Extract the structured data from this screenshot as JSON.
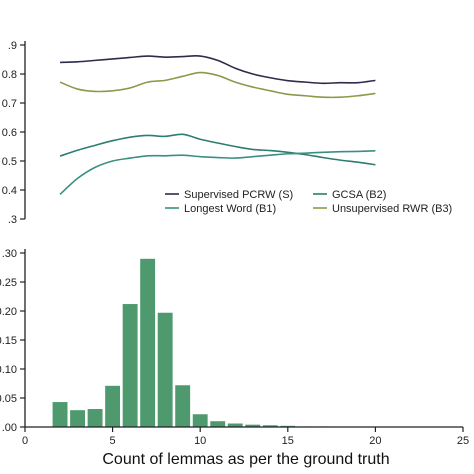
{
  "chart_data": [
    {
      "type": "line",
      "title": "",
      "xlabel": "",
      "ylabel": "",
      "xlim": [
        0,
        25
      ],
      "ylim": [
        0.3,
        0.9
      ],
      "yticks": [
        0.3,
        0.4,
        0.5,
        0.6,
        0.7,
        0.8,
        0.9
      ],
      "ytick_labels": [
        ".3",
        "0.4",
        "0.5",
        "0.6",
        "0.7",
        "0.8",
        ".9"
      ],
      "grid": false,
      "legend_position": "lower-right",
      "legend_columns": 2,
      "x": [
        2,
        3,
        4,
        5,
        6,
        7,
        8,
        9,
        10,
        11,
        12,
        13,
        14,
        15,
        16,
        17,
        18,
        19,
        20
      ],
      "series": [
        {
          "name": "Supervised PCRW (S)",
          "color": "#2b2d4a",
          "values": [
            0.84,
            0.842,
            0.847,
            0.852,
            0.857,
            0.862,
            0.858,
            0.86,
            0.862,
            0.847,
            0.82,
            0.8,
            0.787,
            0.777,
            0.772,
            0.768,
            0.77,
            0.77,
            0.778
          ]
        },
        {
          "name": "GCSA (B2)",
          "color": "#2e7d6e",
          "values": [
            0.517,
            0.537,
            0.554,
            0.57,
            0.582,
            0.588,
            0.585,
            0.592,
            0.575,
            0.562,
            0.55,
            0.54,
            0.536,
            0.53,
            0.522,
            0.512,
            0.503,
            0.496,
            0.487
          ]
        },
        {
          "name": "Longest Word (B1)",
          "color": "#3a8f82",
          "values": [
            0.385,
            0.44,
            0.478,
            0.5,
            0.51,
            0.518,
            0.518,
            0.52,
            0.515,
            0.512,
            0.51,
            0.515,
            0.52,
            0.525,
            0.527,
            0.53,
            0.532,
            0.533,
            0.535
          ]
        },
        {
          "name": "Unsupervised RWR (B3)",
          "color": "#8b9a4a",
          "values": [
            0.772,
            0.748,
            0.74,
            0.742,
            0.752,
            0.772,
            0.778,
            0.792,
            0.805,
            0.795,
            0.772,
            0.755,
            0.742,
            0.73,
            0.725,
            0.72,
            0.72,
            0.725,
            0.733
          ]
        }
      ]
    },
    {
      "type": "bar",
      "title": "",
      "xlabel": "Count of lemmas as per the ground truth",
      "ylabel": "",
      "xlim": [
        0,
        25
      ],
      "ylim": [
        0,
        0.3
      ],
      "xticks": [
        0,
        5,
        10,
        15,
        20,
        25
      ],
      "xtick_labels": [
        "0",
        "5",
        "10",
        "15",
        "20",
        "25"
      ],
      "yticks": [
        0,
        0.05,
        0.1,
        0.15,
        0.2,
        0.25,
        0.3
      ],
      "ytick_labels": [
        ".00",
        "0.05",
        "0.10",
        "0.15",
        "0.20",
        "0.25",
        ".30"
      ],
      "grid": false,
      "bar_color": "#4e9a6e",
      "bar_width": 0.85,
      "categories": [
        2,
        3,
        4,
        5,
        6,
        7,
        8,
        9,
        10,
        11,
        12,
        13,
        14,
        15,
        16,
        17,
        18,
        19,
        20
      ],
      "values": [
        0.043,
        0.029,
        0.031,
        0.071,
        0.212,
        0.29,
        0.197,
        0.072,
        0.022,
        0.01,
        0.006,
        0.004,
        0.003,
        0.002,
        0.001,
        0.001,
        0.0007,
        0.0004,
        0.0003
      ]
    }
  ]
}
